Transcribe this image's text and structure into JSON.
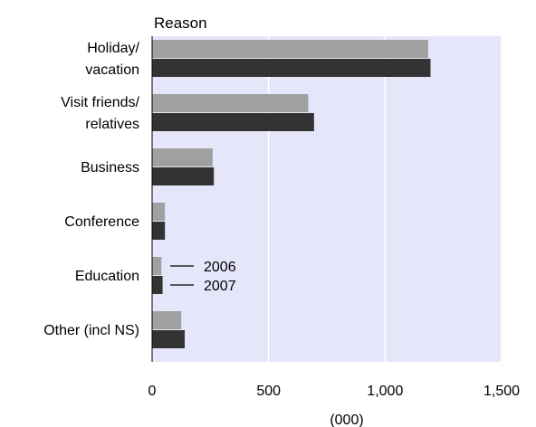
{
  "chart_data": {
    "type": "bar",
    "orientation": "horizontal",
    "title": "Reason",
    "xlabel": "(000)",
    "ylabel": "",
    "xlim": [
      0,
      1500
    ],
    "xticks": [
      0,
      500,
      1000,
      1500
    ],
    "xtick_labels": [
      "0",
      "500",
      "1,000",
      "1,500"
    ],
    "grid": true,
    "categories": [
      [
        "Holiday/",
        "vacation"
      ],
      [
        "Visit friends/",
        "relatives"
      ],
      [
        "Business"
      ],
      [
        "Conference"
      ],
      [
        "Education"
      ],
      [
        "Other (incl NS)"
      ]
    ],
    "series": [
      {
        "name": "2006",
        "color": "#a0a0a0",
        "values": [
          1185,
          670,
          260,
          55,
          40,
          125
        ]
      },
      {
        "name": "2007",
        "color": "#333333",
        "values": [
          1195,
          695,
          265,
          55,
          45,
          140
        ]
      }
    ],
    "legend": {
      "placement": "inline-education"
    },
    "colors": {
      "plot_background": "#e6e6fa",
      "gridline": "#ffffff"
    }
  }
}
